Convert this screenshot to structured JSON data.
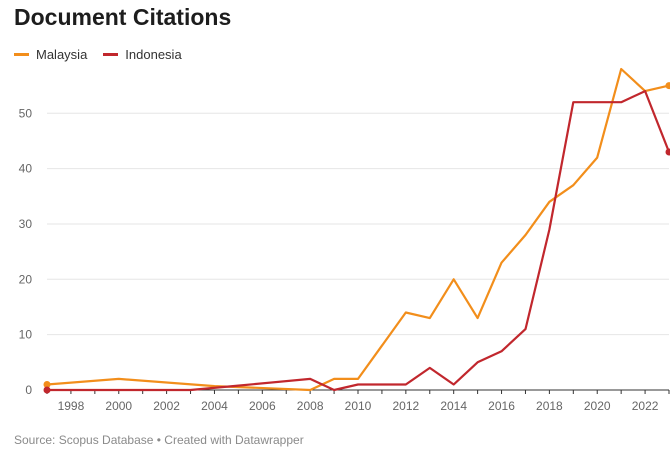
{
  "title": "Document Citations",
  "footer": "Source: Scopus Database • Created with Datawrapper",
  "colors": {
    "malaysia": "#f28e1b",
    "indonesia": "#c1272d",
    "grid": "#e6e6e6",
    "axis": "#333333"
  },
  "chart_data": {
    "type": "line",
    "title": "Document Citations",
    "xlabel": "",
    "ylabel": "",
    "xlim": [
      1997,
      2023
    ],
    "ylim": [
      0,
      58
    ],
    "x_ticks": [
      "1998",
      "2000",
      "2002",
      "2004",
      "2006",
      "2008",
      "2010",
      "2012",
      "2014",
      "2016",
      "2018",
      "2020",
      "2022"
    ],
    "y_ticks": [
      "0",
      "10",
      "20",
      "30",
      "40",
      "50"
    ],
    "grid": true,
    "legend_position": "top-left",
    "series": [
      {
        "name": "Malaysia",
        "color": "#f28e1b",
        "points": [
          [
            1997,
            1
          ],
          [
            2000,
            2
          ],
          [
            2004,
            0.7
          ],
          [
            2008,
            0
          ],
          [
            2009,
            2
          ],
          [
            2010,
            2
          ],
          [
            2012,
            14
          ],
          [
            2013,
            13
          ],
          [
            2014,
            20
          ],
          [
            2015,
            13
          ],
          [
            2016,
            23
          ],
          [
            2017,
            28
          ],
          [
            2018,
            34
          ],
          [
            2019,
            37
          ],
          [
            2020,
            42
          ],
          [
            2021,
            58
          ],
          [
            2022,
            54
          ],
          [
            2023,
            55
          ]
        ]
      },
      {
        "name": "Indonesia",
        "color": "#c1272d",
        "points": [
          [
            1997,
            0
          ],
          [
            2003,
            0
          ],
          [
            2005,
            0.8
          ],
          [
            2008,
            2
          ],
          [
            2009,
            0
          ],
          [
            2010,
            1
          ],
          [
            2012,
            1
          ],
          [
            2013,
            4
          ],
          [
            2014,
            1
          ],
          [
            2015,
            5
          ],
          [
            2016,
            7
          ],
          [
            2017,
            11
          ],
          [
            2018,
            29
          ],
          [
            2019,
            52
          ],
          [
            2020,
            52
          ],
          [
            2021,
            52
          ],
          [
            2022,
            54
          ],
          [
            2023,
            43
          ]
        ]
      }
    ]
  }
}
